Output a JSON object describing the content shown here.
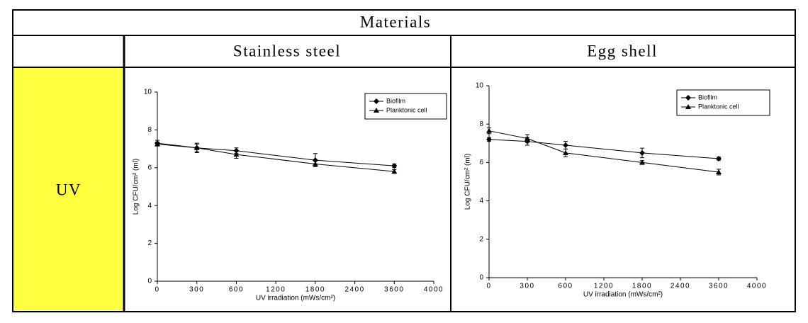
{
  "table": {
    "header": "Materials",
    "columns": [
      "Stainless steel",
      "Egg shell"
    ],
    "row_label": "UV"
  },
  "chart_data": [
    {
      "type": "line",
      "ylabel": "Log CFU/cm² (ml)",
      "xlabel": "UV irradiation (mWs/cm²)",
      "categories": [
        "0",
        "300",
        "600",
        "1200",
        "1800",
        "2400",
        "3600",
        "4000"
      ],
      "ylim": [
        0,
        10
      ],
      "yticks": [
        0,
        2,
        4,
        6,
        8,
        10
      ],
      "legend": "upper right",
      "grid": false,
      "series": [
        {
          "name": "Biofilm",
          "color": "#000000",
          "marker": "diamond",
          "values": [
            7.3,
            7.05,
            6.9,
            null,
            6.4,
            null,
            6.1,
            null
          ],
          "errors": [
            0.15,
            0.2,
            0.15,
            null,
            0.35,
            null,
            0.1,
            null
          ]
        },
        {
          "name": "Planktonic cell",
          "color": "#000000",
          "marker": "triangle",
          "values": [
            7.25,
            7.05,
            6.7,
            null,
            6.2,
            null,
            5.8,
            null
          ],
          "errors": [
            0.1,
            0.25,
            0.2,
            null,
            0.15,
            null,
            0.1,
            null
          ]
        }
      ]
    },
    {
      "type": "line",
      "ylabel": "Log CFU/cm² (ml)",
      "xlabel": "UV irradiation (mWs/cm²)",
      "categories": [
        "0",
        "300",
        "600",
        "1200",
        "1800",
        "2400",
        "3600",
        "4000"
      ],
      "ylim": [
        0,
        10
      ],
      "yticks": [
        0,
        2,
        4,
        6,
        8,
        10
      ],
      "legend": "upper right",
      "grid": false,
      "series": [
        {
          "name": "Biofilm",
          "color": "#000000",
          "marker": "diamond",
          "values": [
            7.2,
            7.1,
            6.9,
            null,
            6.5,
            null,
            6.2,
            null
          ],
          "errors": [
            0.1,
            0.2,
            0.2,
            null,
            0.25,
            null,
            0.08,
            null
          ]
        },
        {
          "name": "Planktonic cell",
          "color": "#000000",
          "marker": "triangle",
          "values": [
            7.65,
            7.25,
            6.5,
            null,
            6.0,
            null,
            5.5,
            null
          ],
          "errors": [
            0.15,
            0.2,
            0.2,
            null,
            0.1,
            null,
            0.15,
            null
          ]
        }
      ]
    }
  ]
}
